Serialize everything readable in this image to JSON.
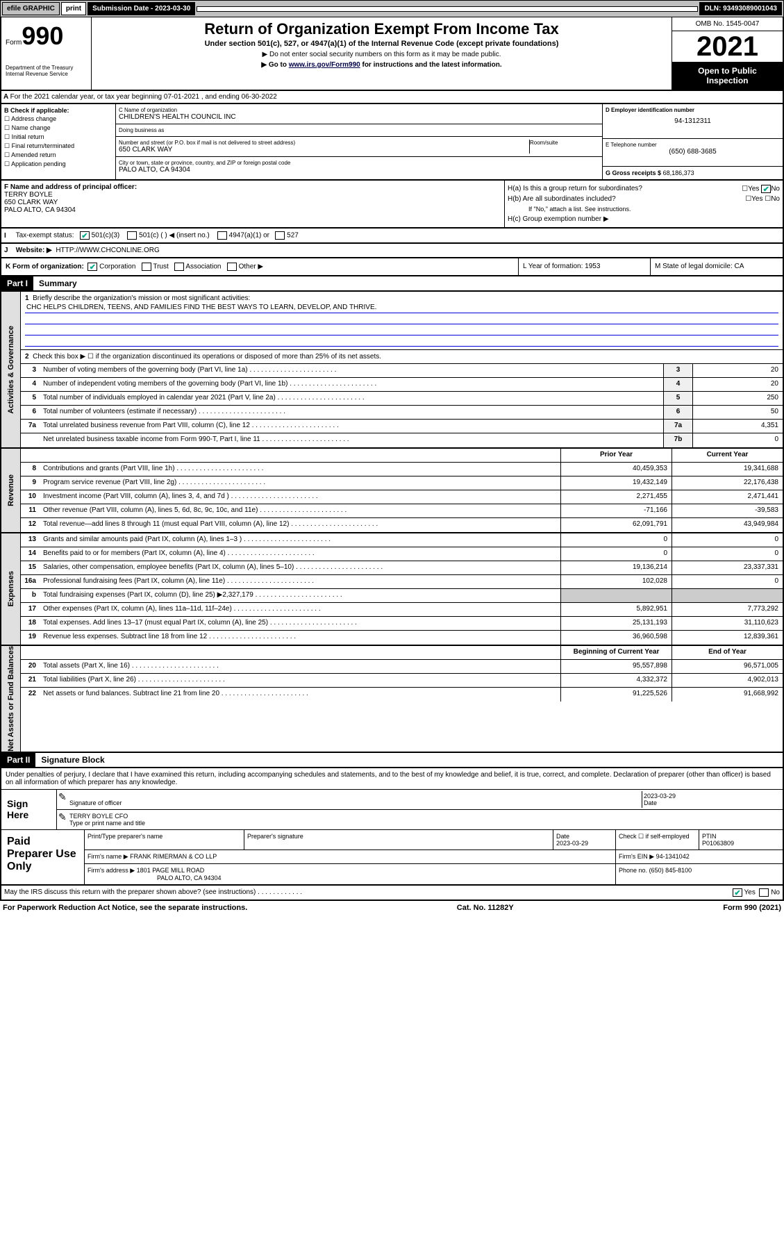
{
  "topbar": {
    "efile": "efile GRAPHIC",
    "print": "print",
    "sub_label": "Submission Date - 2023-03-30",
    "dln": "DLN: 93493089001043"
  },
  "header": {
    "form_prefix": "Form",
    "form_num": "990",
    "dept": "Department of the Treasury\nInternal Revenue Service",
    "title": "Return of Organization Exempt From Income Tax",
    "subtitle": "Under section 501(c), 527, or 4947(a)(1) of the Internal Revenue Code (except private foundations)",
    "inst1": "▶ Do not enter social security numbers on this form as it may be made public.",
    "inst2_pre": "▶ Go to ",
    "inst2_link": "www.irs.gov/Form990",
    "inst2_post": " for instructions and the latest information.",
    "omb": "OMB No. 1545-0047",
    "year": "2021",
    "open": "Open to Public Inspection"
  },
  "row_a": "For the 2021 calendar year, or tax year beginning 07-01-2021 , and ending 06-30-2022",
  "sec_b": {
    "label": "B Check if applicable:",
    "opts": [
      "Address change",
      "Name change",
      "Initial return",
      "Final return/terminated",
      "Amended return",
      "Application pending"
    ]
  },
  "sec_c": {
    "name_label": "C Name of organization",
    "name": "CHILDREN'S HEALTH COUNCIL INC",
    "dba_label": "Doing business as",
    "dba": "",
    "addr_label": "Number and street (or P.O. box if mail is not delivered to street address)",
    "addr": "650 CLARK WAY",
    "room_label": "Room/suite",
    "city_label": "City or town, state or province, country, and ZIP or foreign postal code",
    "city": "PALO ALTO, CA  94304"
  },
  "sec_d": {
    "label": "D Employer identification number",
    "val": "94-1312311"
  },
  "sec_e": {
    "label": "E Telephone number",
    "val": "(650) 688-3685"
  },
  "sec_g": {
    "label": "G Gross receipts $",
    "val": "68,186,373"
  },
  "sec_f": {
    "label": "F Name and address of principal officer:",
    "name": "TERRY BOYLE",
    "addr1": "650 CLARK WAY",
    "addr2": "PALO ALTO, CA  94304"
  },
  "sec_h": {
    "a": "H(a)  Is this a group return for subordinates?",
    "b": "H(b)  Are all subordinates included?",
    "b_note": "If \"No,\" attach a list. See instructions.",
    "c": "H(c)  Group exemption number ▶"
  },
  "sec_i": {
    "lbl": "I",
    "txt": "Tax-exempt status:",
    "opt1": "501(c)(3)",
    "opt2": "501(c) (  ) ◀ (insert no.)",
    "opt3": "4947(a)(1) or",
    "opt4": "527"
  },
  "sec_j": {
    "lbl": "J",
    "txt": "Website: ▶",
    "val": "HTTP://WWW.CHCONLINE.ORG"
  },
  "sec_k": {
    "lbl": "K Form of organization:",
    "opt1": "Corporation",
    "opt2": "Trust",
    "opt3": "Association",
    "opt4": "Other ▶",
    "l": "L Year of formation: 1953",
    "m": "M State of legal domicile: CA"
  },
  "part1": {
    "num": "Part I",
    "title": "Summary"
  },
  "summary": {
    "q1": "Briefly describe the organization's mission or most significant activities:",
    "mission": "CHC HELPS CHILDREN, TEENS, AND FAMILIES FIND THE BEST WAYS TO LEARN, DEVELOP, AND THRIVE.",
    "q2": "Check this box ▶ ☐ if the organization discontinued its operations or disposed of more than 25% of its net assets.",
    "lines": [
      {
        "n": "3",
        "t": "Number of voting members of the governing body (Part VI, line 1a)",
        "bn": "3",
        "v": "20"
      },
      {
        "n": "4",
        "t": "Number of independent voting members of the governing body (Part VI, line 1b)",
        "bn": "4",
        "v": "20"
      },
      {
        "n": "5",
        "t": "Total number of individuals employed in calendar year 2021 (Part V, line 2a)",
        "bn": "5",
        "v": "250"
      },
      {
        "n": "6",
        "t": "Total number of volunteers (estimate if necessary)",
        "bn": "6",
        "v": "50"
      },
      {
        "n": "7a",
        "t": "Total unrelated business revenue from Part VIII, column (C), line 12",
        "bn": "7a",
        "v": "4,351"
      },
      {
        "n": "",
        "t": "Net unrelated business taxable income from Form 990-T, Part I, line 11",
        "bn": "7b",
        "v": "0"
      }
    ],
    "pyhdr": "Prior Year",
    "cyhdr": "Current Year",
    "revenue": [
      {
        "n": "8",
        "t": "Contributions and grants (Part VIII, line 1h)",
        "p": "40,459,353",
        "c": "19,341,688"
      },
      {
        "n": "9",
        "t": "Program service revenue (Part VIII, line 2g)",
        "p": "19,432,149",
        "c": "22,176,438"
      },
      {
        "n": "10",
        "t": "Investment income (Part VIII, column (A), lines 3, 4, and 7d )",
        "p": "2,271,455",
        "c": "2,471,441"
      },
      {
        "n": "11",
        "t": "Other revenue (Part VIII, column (A), lines 5, 6d, 8c, 9c, 10c, and 11e)",
        "p": "-71,166",
        "c": "-39,583"
      },
      {
        "n": "12",
        "t": "Total revenue—add lines 8 through 11 (must equal Part VIII, column (A), line 12)",
        "p": "62,091,791",
        "c": "43,949,984"
      }
    ],
    "expenses": [
      {
        "n": "13",
        "t": "Grants and similar amounts paid (Part IX, column (A), lines 1–3 )",
        "p": "0",
        "c": "0"
      },
      {
        "n": "14",
        "t": "Benefits paid to or for members (Part IX, column (A), line 4)",
        "p": "0",
        "c": "0"
      },
      {
        "n": "15",
        "t": "Salaries, other compensation, employee benefits (Part IX, column (A), lines 5–10)",
        "p": "19,136,214",
        "c": "23,337,331"
      },
      {
        "n": "16a",
        "t": "Professional fundraising fees (Part IX, column (A), line 11e)",
        "p": "102,028",
        "c": "0"
      },
      {
        "n": "b",
        "t": "Total fundraising expenses (Part IX, column (D), line 25) ▶2,327,179",
        "p": "",
        "c": "",
        "shaded": true
      },
      {
        "n": "17",
        "t": "Other expenses (Part IX, column (A), lines 11a–11d, 11f–24e)",
        "p": "5,892,951",
        "c": "7,773,292"
      },
      {
        "n": "18",
        "t": "Total expenses. Add lines 13–17 (must equal Part IX, column (A), line 25)",
        "p": "25,131,193",
        "c": "31,110,623"
      },
      {
        "n": "19",
        "t": "Revenue less expenses. Subtract line 18 from line 12",
        "p": "36,960,598",
        "c": "12,839,361"
      }
    ],
    "bchdr": "Beginning of Current Year",
    "eyhdr": "End of Year",
    "netassets": [
      {
        "n": "20",
        "t": "Total assets (Part X, line 16)",
        "p": "95,557,898",
        "c": "96,571,005"
      },
      {
        "n": "21",
        "t": "Total liabilities (Part X, line 26)",
        "p": "4,332,372",
        "c": "4,902,013"
      },
      {
        "n": "22",
        "t": "Net assets or fund balances. Subtract line 21 from line 20",
        "p": "91,225,526",
        "c": "91,668,992"
      }
    ],
    "tabs": {
      "gov": "Activities & Governance",
      "rev": "Revenue",
      "exp": "Expenses",
      "net": "Net Assets or Fund Balances"
    }
  },
  "part2": {
    "num": "Part II",
    "title": "Signature Block"
  },
  "sig": {
    "intro": "Under penalties of perjury, I declare that I have examined this return, including accompanying schedules and statements, and to the best of my knowledge and belief, it is true, correct, and complete. Declaration of preparer (other than officer) is based on all information of which preparer has any knowledge.",
    "here": "Sign Here",
    "officer_sig": "Signature of officer",
    "date": "2023-03-29",
    "date_label": "Date",
    "name": "TERRY BOYLE CFO",
    "name_label": "Type or print name and title"
  },
  "prep": {
    "title": "Paid Preparer Use Only",
    "cols": [
      "Print/Type preparer's name",
      "Preparer's signature",
      "Date",
      "",
      "PTIN"
    ],
    "date": "2023-03-29",
    "check": "Check ☐ if self-employed",
    "ptin": "P01063809",
    "firm_label": "Firm's name    ▶",
    "firm": "FRANK RIMERMAN & CO LLP",
    "ein_label": "Firm's EIN ▶",
    "ein": "94-1341042",
    "addr_label": "Firm's address ▶",
    "addr1": "1801 PAGE MILL ROAD",
    "addr2": "PALO ALTO, CA  94304",
    "phone_label": "Phone no.",
    "phone": "(650) 845-8100"
  },
  "footer": {
    "q": "May the IRS discuss this return with the preparer shown above? (see instructions)",
    "yes": "Yes",
    "no": "No",
    "paperwork": "For Paperwork Reduction Act Notice, see the separate instructions.",
    "cat": "Cat. No. 11282Y",
    "form": "Form 990 (2021)"
  }
}
